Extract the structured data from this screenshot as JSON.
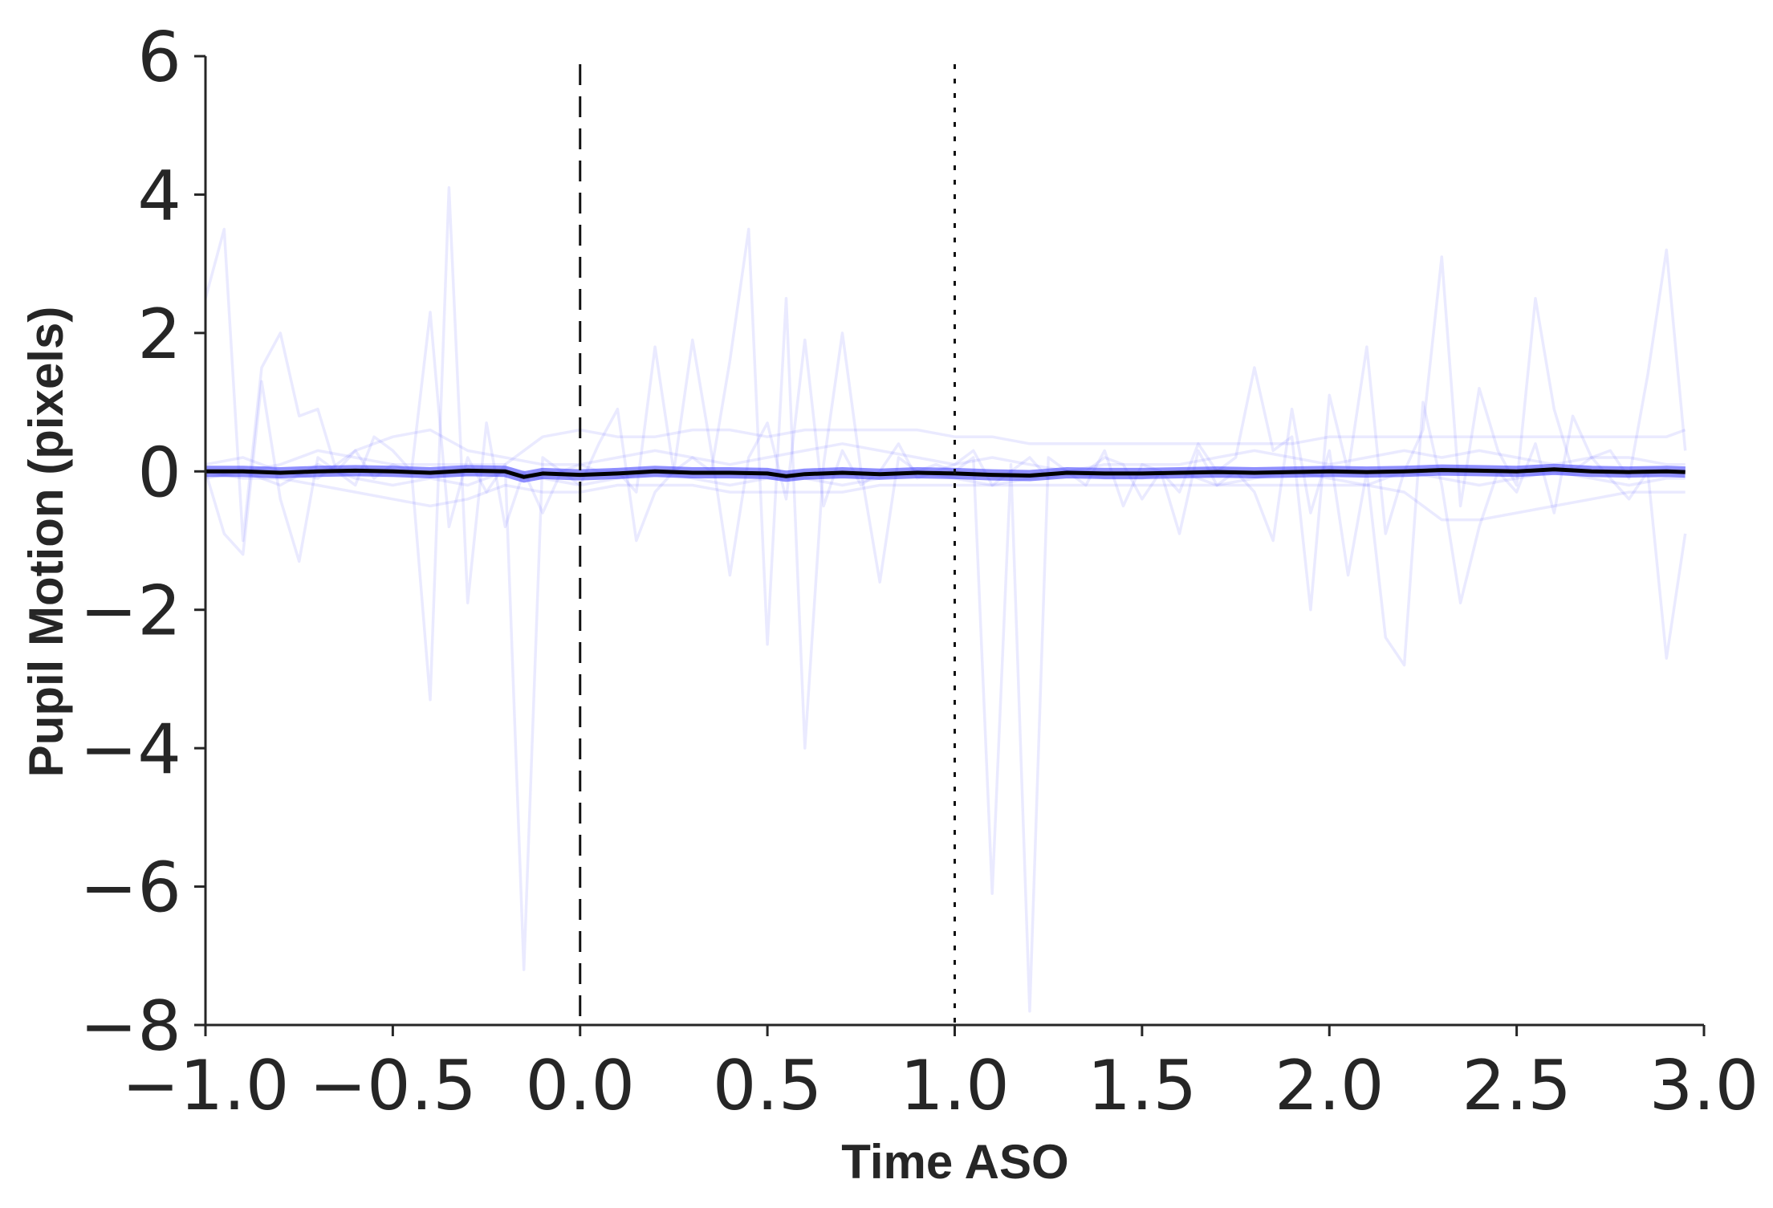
{
  "chart_data": {
    "type": "line",
    "title": "",
    "xlabel": "Time ASO",
    "ylabel": "Pupil Motion (pixels)",
    "xlim": [
      -1.0,
      3.0
    ],
    "ylim": [
      -8,
      6
    ],
    "x_ticks": [
      "−1.0",
      "−0.5",
      "0.0",
      "0.5",
      "1.0",
      "1.5",
      "2.0",
      "2.5",
      "3.0"
    ],
    "y_ticks": [
      "6",
      "4",
      "2",
      "0",
      "−2",
      "−4",
      "−6",
      "−8"
    ],
    "x_tick_values": [
      -1.0,
      -0.5,
      0.0,
      0.5,
      1.0,
      1.5,
      2.0,
      2.5,
      3.0
    ],
    "y_tick_values": [
      6,
      4,
      2,
      0,
      -2,
      -4,
      -6,
      -8
    ],
    "grid": false,
    "legend": "none",
    "colors": {
      "trials": "#3333ff",
      "mean": "#000000",
      "axes": "#262626"
    },
    "vlines": [
      {
        "x": 0.0,
        "style": "dashed"
      },
      {
        "x": 1.0,
        "style": "dotted"
      }
    ],
    "series": [
      {
        "role": "trial",
        "x": [
          -1.0,
          -0.95,
          -0.9,
          -0.85,
          -0.8,
          -0.75,
          -0.7,
          -0.65,
          -0.6,
          -0.55,
          -0.5,
          -0.45,
          -0.4,
          -0.35,
          -0.3,
          -0.25,
          -0.2,
          -0.15,
          -0.1,
          -0.05,
          0.0,
          0.05,
          0.1,
          0.15,
          0.2,
          0.25,
          0.3,
          0.35,
          0.4,
          0.45,
          0.5,
          0.55,
          0.6,
          0.65,
          0.7,
          0.75,
          0.8,
          0.85,
          0.9,
          0.95,
          1.0,
          1.05,
          1.1,
          1.15,
          1.2,
          1.25,
          1.3,
          1.35,
          1.4,
          1.45,
          1.5,
          1.55,
          1.6,
          1.65,
          1.7,
          1.75,
          1.8,
          1.85,
          1.9,
          1.95,
          2.0,
          2.05,
          2.1,
          2.15,
          2.2,
          2.25,
          2.3,
          2.35,
          2.4,
          2.45,
          2.5,
          2.55,
          2.6,
          2.65,
          2.7,
          2.75,
          2.8,
          2.85,
          2.9,
          2.95
        ],
        "y": [
          2.5,
          3.5,
          -1.0,
          1.5,
          2.0,
          0.8,
          0.9,
          0.0,
          0.3,
          -0.1,
          0.1,
          0.0,
          2.3,
          -0.8,
          0.2,
          -0.3,
          0.1,
          -7.2,
          0.2,
          0.0,
          0.1,
          0.0,
          0.0,
          -0.3,
          1.8,
          0.0,
          0.2,
          0.0,
          1.6,
          3.5,
          -2.5,
          2.5,
          -4.0,
          0.1,
          2.0,
          0.0,
          -1.6,
          0.2,
          0.0,
          0.1,
          0.0,
          0.2,
          -6.1,
          0.1,
          -7.8,
          0.2,
          0.0,
          -0.2,
          0.3,
          -0.5,
          0.1,
          0.0,
          -0.3,
          0.4,
          0.0,
          0.2,
          1.5,
          0.3,
          0.5,
          -2.0,
          1.1,
          0.0,
          1.8,
          -0.9,
          0.0,
          0.6,
          3.1,
          -0.5,
          1.2,
          0.3,
          -0.2,
          2.5,
          0.9,
          0.0,
          0.2,
          0.3,
          -0.1,
          1.4,
          3.2,
          0.3
        ]
      },
      {
        "role": "trial",
        "x": [
          -1.0,
          -0.95,
          -0.9,
          -0.85,
          -0.8,
          -0.75,
          -0.7,
          -0.65,
          -0.6,
          -0.55,
          -0.5,
          -0.45,
          -0.4,
          -0.35,
          -0.3,
          -0.25,
          -0.2,
          -0.15,
          -0.1,
          -0.05,
          0.0,
          0.05,
          0.1,
          0.15,
          0.2,
          0.25,
          0.3,
          0.35,
          0.4,
          0.45,
          0.5,
          0.55,
          0.6,
          0.65,
          0.7,
          0.75,
          0.8,
          0.85,
          0.9,
          0.95,
          1.0,
          1.05,
          1.1,
          1.15,
          1.2,
          1.25,
          1.3,
          1.35,
          1.4,
          1.45,
          1.5,
          1.55,
          1.6,
          1.65,
          1.7,
          1.75,
          1.8,
          1.85,
          1.9,
          1.95,
          2.0,
          2.05,
          2.1,
          2.15,
          2.2,
          2.25,
          2.3,
          2.35,
          2.4,
          2.45,
          2.5,
          2.55,
          2.6,
          2.65,
          2.7,
          2.75,
          2.8,
          2.85,
          2.9,
          2.95
        ],
        "y": [
          0.0,
          -0.9,
          -1.2,
          1.3,
          -0.4,
          -1.3,
          0.2,
          0.0,
          -0.2,
          0.5,
          0.3,
          0.0,
          -3.3,
          4.1,
          -1.9,
          0.7,
          -0.8,
          0.0,
          -0.6,
          0.0,
          -0.2,
          0.4,
          0.9,
          -1.0,
          -0.3,
          0.0,
          1.9,
          0.3,
          -1.5,
          0.2,
          0.7,
          -0.4,
          1.9,
          -0.5,
          0.3,
          -0.2,
          0.0,
          0.4,
          -0.1,
          0.0,
          0.1,
          0.3,
          -0.2,
          0.0,
          0.2,
          -0.1,
          0.0,
          0.0,
          0.2,
          0.1,
          -0.4,
          0.0,
          -0.9,
          0.3,
          -0.2,
          0.0,
          -0.3,
          -1.0,
          0.9,
          -0.6,
          0.3,
          -1.5,
          0.0,
          -2.4,
          -2.8,
          1.0,
          -0.2,
          -1.9,
          -0.8,
          0.0,
          -0.3,
          0.4,
          -0.6,
          0.8,
          0.2,
          -0.1,
          -0.4,
          0.0,
          -2.7,
          -0.9
        ]
      },
      {
        "role": "trial",
        "x": [
          -1.0,
          -0.9,
          -0.8,
          -0.7,
          -0.6,
          -0.5,
          -0.4,
          -0.3,
          -0.2,
          -0.1,
          0.0,
          0.1,
          0.2,
          0.3,
          0.4,
          0.5,
          0.6,
          0.7,
          0.8,
          0.9,
          1.0,
          1.1,
          1.2,
          1.3,
          1.4,
          1.5,
          1.6,
          1.7,
          1.8,
          1.9,
          2.0,
          2.1,
          2.2,
          2.3,
          2.4,
          2.5,
          2.6,
          2.7,
          2.8,
          2.9,
          2.95
        ],
        "y": [
          0.0,
          0.0,
          0.1,
          0.3,
          0.2,
          0.1,
          0.1,
          0.1,
          0.1,
          0.5,
          0.6,
          0.5,
          0.5,
          0.6,
          0.6,
          0.5,
          0.6,
          0.6,
          0.6,
          0.6,
          0.5,
          0.5,
          0.4,
          0.4,
          0.4,
          0.4,
          0.4,
          0.4,
          0.4,
          0.4,
          0.5,
          0.5,
          0.5,
          0.5,
          0.5,
          0.5,
          0.5,
          0.5,
          0.5,
          0.5,
          0.6
        ]
      },
      {
        "role": "trial",
        "x": [
          -1.0,
          -0.9,
          -0.8,
          -0.7,
          -0.6,
          -0.5,
          -0.4,
          -0.3,
          -0.2,
          -0.1,
          0.0,
          0.1,
          0.2,
          0.3,
          0.4,
          0.5,
          0.6,
          0.7,
          0.8,
          0.9,
          1.0,
          1.1,
          1.2,
          1.3,
          1.4,
          1.5,
          1.6,
          1.7,
          1.8,
          1.9,
          2.0,
          2.1,
          2.2,
          2.3,
          2.4,
          2.5,
          2.6,
          2.7,
          2.8,
          2.9,
          2.95
        ],
        "y": [
          0.0,
          -0.1,
          -0.1,
          -0.2,
          -0.3,
          -0.4,
          -0.5,
          -0.4,
          -0.2,
          -0.3,
          -0.3,
          -0.2,
          -0.2,
          -0.2,
          -0.3,
          -0.3,
          -0.3,
          -0.3,
          -0.2,
          -0.2,
          -0.2,
          -0.2,
          -0.2,
          -0.2,
          -0.2,
          -0.2,
          -0.2,
          -0.2,
          -0.2,
          -0.2,
          -0.2,
          -0.2,
          -0.3,
          -0.7,
          -0.7,
          -0.6,
          -0.5,
          -0.4,
          -0.3,
          -0.3,
          -0.3
        ]
      },
      {
        "role": "trial",
        "x": [
          -1.0,
          -0.9,
          -0.8,
          -0.7,
          -0.6,
          -0.5,
          -0.4,
          -0.3,
          -0.2,
          -0.1,
          0.0,
          0.1,
          0.2,
          0.3,
          0.4,
          0.5,
          0.6,
          0.7,
          0.8,
          0.9,
          1.0,
          1.1,
          1.2,
          1.3,
          1.4,
          1.5,
          1.6,
          1.7,
          1.8,
          1.9,
          2.0,
          2.1,
          2.2,
          2.3,
          2.4,
          2.5,
          2.6,
          2.7,
          2.8,
          2.9,
          2.95
        ],
        "y": [
          0.1,
          0.2,
          0.0,
          -0.1,
          0.3,
          0.5,
          0.6,
          0.3,
          0.2,
          0.1,
          0.1,
          0.2,
          0.3,
          0.2,
          0.1,
          0.2,
          0.3,
          0.4,
          0.3,
          0.2,
          0.1,
          0.2,
          0.1,
          0.0,
          0.1,
          0.1,
          0.1,
          0.2,
          0.3,
          0.2,
          0.1,
          0.2,
          0.3,
          0.2,
          0.3,
          0.2,
          0.1,
          0.2,
          0.2,
          0.1,
          0.1
        ]
      },
      {
        "role": "trial",
        "x": [
          -1.0,
          -0.9,
          -0.8,
          -0.7,
          -0.6,
          -0.5,
          -0.4,
          -0.3,
          -0.2,
          -0.1,
          0.0,
          0.1,
          0.2,
          0.3,
          0.4,
          0.5,
          0.6,
          0.7,
          0.8,
          0.9,
          1.0,
          1.1,
          1.2,
          1.3,
          1.4,
          1.5,
          1.6,
          1.7,
          1.8,
          1.9,
          2.0,
          2.1,
          2.2,
          2.3,
          2.4,
          2.5,
          2.6,
          2.7,
          2.8,
          2.9,
          2.95
        ],
        "y": [
          -0.1,
          0.0,
          -0.2,
          0.1,
          -0.1,
          -0.2,
          -0.1,
          -0.2,
          0.0,
          -0.1,
          -0.2,
          -0.1,
          0.0,
          -0.1,
          -0.2,
          -0.1,
          -0.1,
          -0.2,
          -0.1,
          0.0,
          -0.1,
          -0.2,
          -0.1,
          0.0,
          -0.1,
          -0.1,
          0.0,
          -0.2,
          -0.1,
          0.0,
          -0.1,
          -0.2,
          0.0,
          -0.1,
          -0.2,
          -0.1,
          0.0,
          -0.1,
          -0.2,
          -0.1,
          -0.1
        ]
      },
      {
        "role": "mean",
        "x": [
          -1.0,
          -0.9,
          -0.8,
          -0.7,
          -0.6,
          -0.5,
          -0.4,
          -0.3,
          -0.2,
          -0.15,
          -0.1,
          0.0,
          0.1,
          0.2,
          0.3,
          0.4,
          0.5,
          0.55,
          0.6,
          0.7,
          0.8,
          0.9,
          1.0,
          1.1,
          1.2,
          1.3,
          1.4,
          1.5,
          1.6,
          1.7,
          1.8,
          1.9,
          2.0,
          2.1,
          2.2,
          2.3,
          2.4,
          2.5,
          2.6,
          2.7,
          2.8,
          2.9,
          2.95
        ],
        "y": [
          0.0,
          0.0,
          -0.02,
          0.0,
          0.01,
          0.0,
          -0.02,
          0.01,
          0.0,
          -0.08,
          -0.03,
          -0.05,
          -0.03,
          0.0,
          -0.02,
          -0.02,
          -0.03,
          -0.07,
          -0.04,
          -0.02,
          -0.04,
          -0.02,
          -0.03,
          -0.05,
          -0.06,
          -0.02,
          -0.03,
          -0.03,
          -0.02,
          -0.01,
          -0.02,
          -0.01,
          0.0,
          -0.01,
          0.0,
          0.02,
          0.01,
          0.0,
          0.03,
          0.0,
          -0.01,
          0.0,
          -0.01
        ]
      }
    ]
  }
}
